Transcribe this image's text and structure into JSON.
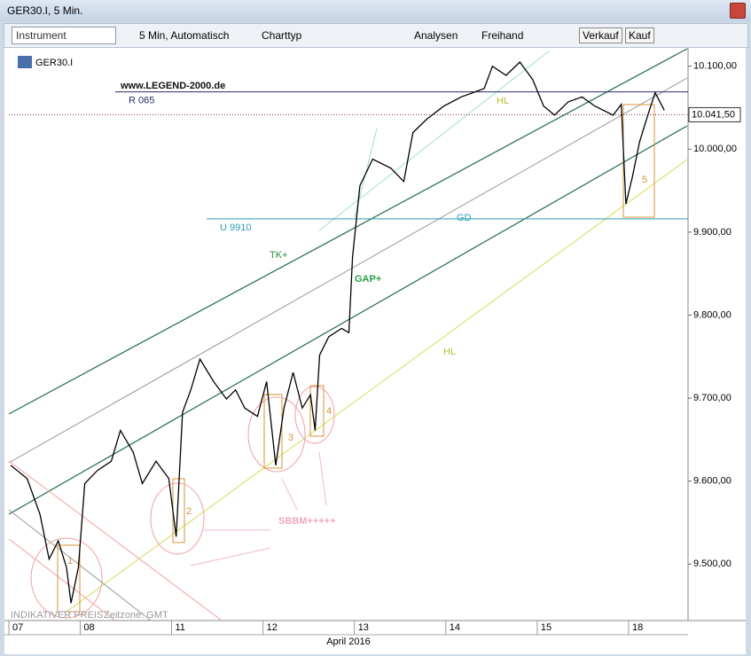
{
  "window": {
    "title": "GER30.I, 5 Min."
  },
  "toolbar": {
    "instrument": "Instrument",
    "period": "5 Min,  Automatisch",
    "chart_type": "Charttyp",
    "analyses": "Analysen",
    "freehand": "Freihand",
    "sell": "Verkauf",
    "buy": "Kauf"
  },
  "chart_data": {
    "type": "line",
    "watermark": "www.LEGEND-2000.de",
    "footer": "INDIKATIVER PREIS",
    "timezone": "Zeitzone: GMT",
    "x_label": "April 2016",
    "x": [
      0.24,
      0.42,
      0.56,
      0.66,
      0.76,
      0.85,
      0.9,
      0.98,
      1.05,
      1.19,
      1.34,
      1.44,
      1.58,
      1.68,
      1.83,
      1.97,
      2.05,
      2.12,
      2.21,
      2.31,
      2.46,
      2.6,
      2.7,
      2.8,
      2.94,
      3.04,
      3.14,
      3.23,
      3.33,
      3.43,
      3.52,
      3.57,
      3.62,
      3.72,
      3.86,
      3.94,
      3.98,
      4.06,
      4.2,
      4.4,
      4.54,
      4.64,
      4.79,
      4.98,
      5.17,
      5.42,
      5.51,
      5.66,
      5.81,
      5.95,
      6.07,
      6.19,
      6.34,
      6.49,
      6.63,
      6.83,
      6.92,
      6.97,
      7.04,
      7.12,
      7.21,
      7.29,
      7.39
    ],
    "series": [
      {
        "name": "GER30.I",
        "color": "#000000",
        "values": [
          9619,
          9603,
          9560,
          9506,
          9528,
          9496,
          9453,
          9496,
          9597,
          9613,
          9624,
          9661,
          9635,
          9597,
          9624,
          9603,
          9533,
          9683,
          9710,
          9747,
          9720,
          9699,
          9710,
          9688,
          9678,
          9720,
          9619,
          9688,
          9731,
          9688,
          9704,
          9661,
          9752,
          9774,
          9784,
          9779,
          9870,
          9956,
          9988,
          9977,
          9961,
          10020,
          10036,
          10052,
          10063,
          10073,
          10100,
          10089,
          10105,
          10084,
          10052,
          10041,
          10057,
          10063,
          10052,
          10041,
          10054,
          9934,
          9966,
          10009,
          10041,
          10068,
          10047
        ]
      }
    ],
    "xlim": [
      0.22,
      7.65
    ],
    "xticks": [
      {
        "value": 0.22,
        "label": "07"
      },
      {
        "value": 1,
        "label": "08"
      },
      {
        "value": 2,
        "label": "11"
      },
      {
        "value": 3,
        "label": "12"
      },
      {
        "value": 4,
        "label": "13"
      },
      {
        "value": 5,
        "label": "14"
      },
      {
        "value": 6,
        "label": "15"
      },
      {
        "value": 7,
        "label": "18"
      }
    ],
    "ylim": [
      9432,
      10121
    ],
    "yticks": [
      {
        "value": 9500,
        "label": "9.500,00"
      },
      {
        "value": 9600,
        "label": "9.600,00"
      },
      {
        "value": 9700,
        "label": "9.700,00"
      },
      {
        "value": 9800,
        "label": "9.800,00"
      },
      {
        "value": 9900,
        "label": "9.900,00"
      },
      {
        "value": 10000,
        "label": "10.000,00"
      },
      {
        "value": 10100,
        "label": "10.100,00"
      }
    ],
    "last_price": {
      "value": 10041.5,
      "label": "10.041,50"
    },
    "levels": [
      {
        "label": "R 065",
        "value": 10069,
        "color": "#2b2b6b"
      },
      {
        "label": "U 9910",
        "value": 9916,
        "color": "#2aa0b0"
      }
    ],
    "annotations": [
      "TK+",
      "HL",
      "HL",
      "GD",
      "GAP+",
      "SBBM+++++",
      "1",
      "2",
      "3",
      "4",
      "5"
    ]
  }
}
